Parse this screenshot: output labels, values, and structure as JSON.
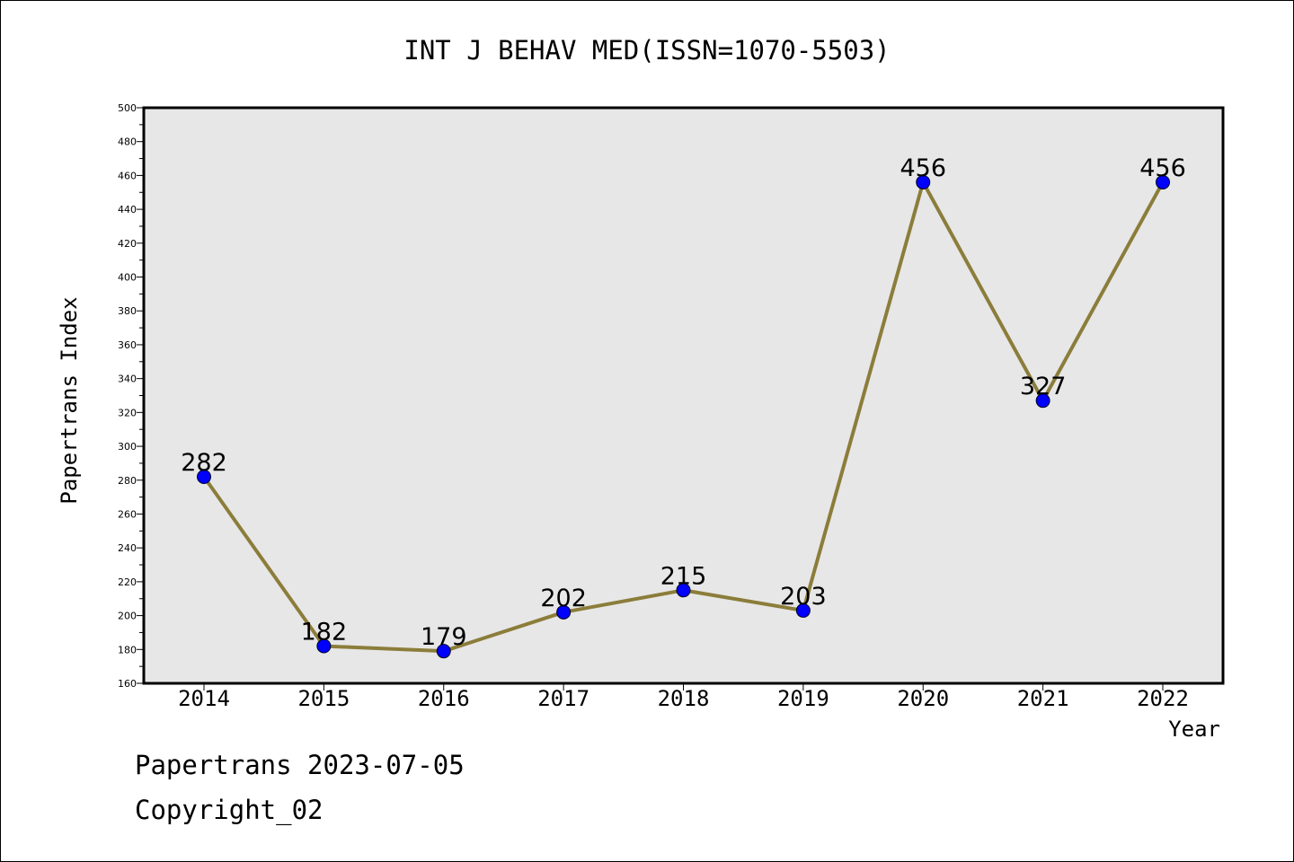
{
  "chart_data": {
    "type": "line",
    "title": "INT J BEHAV MED(ISSN=1070-5503)",
    "xlabel": "Year",
    "ylabel": "Papertrans Index",
    "x": [
      "2014",
      "2015",
      "2016",
      "2017",
      "2018",
      "2019",
      "2020",
      "2021",
      "2022"
    ],
    "values": [
      282,
      182,
      179,
      202,
      215,
      203,
      456,
      327,
      456
    ],
    "ylim": [
      160,
      500
    ],
    "yticks": [
      160,
      180,
      200,
      220,
      240,
      260,
      280,
      300,
      320,
      340,
      360,
      380,
      400,
      420,
      440,
      460,
      480,
      500
    ],
    "grid": false,
    "colors": {
      "plot_background": "#e7e7e7",
      "line": "#8b7d3a",
      "marker": "#0000ff"
    }
  },
  "footer": {
    "source": "Papertrans 2023-07-05",
    "copyright": "Copyright_02"
  }
}
